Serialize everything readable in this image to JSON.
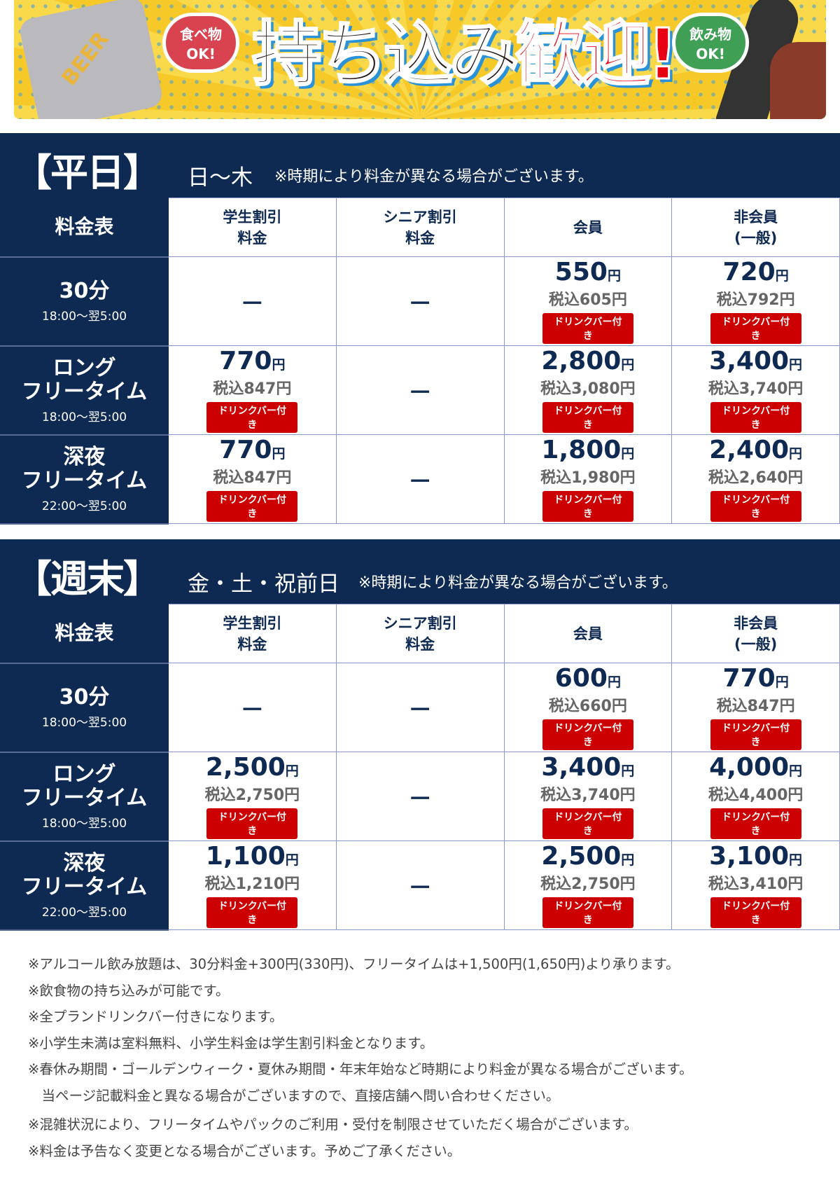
{
  "banner": {
    "title_black": "持ち込み",
    "title_red": "歓迎!",
    "bubble_food": "食べ物\nOK!",
    "bubble_drink": "飲み物\nOK!",
    "can_text": "BEER"
  },
  "colors": {
    "navy": "#0f2a52",
    "badge_red": "#cc0000",
    "grid": "#8a98c8"
  },
  "table_headers": {
    "corner": "料金表",
    "cols": [
      "学生割引\n料金",
      "シニア割引\n料金",
      "会員",
      "非会員\n(一般)"
    ]
  },
  "yen": "円",
  "tax_prefix": "税込",
  "drink_badge": "ドリンクバー付き",
  "dash": "－",
  "sections": [
    {
      "tag": "【平日】",
      "days": "日〜木",
      "note": "※時期により料金が異なる場合がございます。",
      "rows": [
        {
          "label": "30分",
          "time": "18:00〜翌5:00",
          "cells": [
            null,
            null,
            {
              "price": "550",
              "tax": "605"
            },
            {
              "price": "720",
              "tax": "792"
            }
          ]
        },
        {
          "label": "ロング\nフリータイム",
          "time": "18:00〜翌5:00",
          "cells": [
            {
              "price": "770",
              "tax": "847"
            },
            null,
            {
              "price": "2,800",
              "tax": "3,080"
            },
            {
              "price": "3,400",
              "tax": "3,740"
            }
          ]
        },
        {
          "label": "深夜\nフリータイム",
          "time": "22:00〜翌5:00",
          "cells": [
            {
              "price": "770",
              "tax": "847"
            },
            null,
            {
              "price": "1,800",
              "tax": "1,980"
            },
            {
              "price": "2,400",
              "tax": "2,640"
            }
          ]
        }
      ]
    },
    {
      "tag": "【週末】",
      "days": "金・土・祝前日",
      "note": "※時期により料金が異なる場合がございます。",
      "rows": [
        {
          "label": "30分",
          "time": "18:00〜翌5:00",
          "cells": [
            null,
            null,
            {
              "price": "600",
              "tax": "660"
            },
            {
              "price": "770",
              "tax": "847"
            }
          ]
        },
        {
          "label": "ロング\nフリータイム",
          "time": "18:00〜翌5:00",
          "cells": [
            {
              "price": "2,500",
              "tax": "2,750"
            },
            null,
            {
              "price": "3,400",
              "tax": "3,740"
            },
            {
              "price": "4,000",
              "tax": "4,400"
            }
          ]
        },
        {
          "label": "深夜\nフリータイム",
          "time": "22:00〜翌5:00",
          "cells": [
            {
              "price": "1,100",
              "tax": "1,210"
            },
            null,
            {
              "price": "2,500",
              "tax": "2,750"
            },
            {
              "price": "3,100",
              "tax": "3,410"
            }
          ]
        }
      ]
    }
  ],
  "notes": [
    "※アルコール飲み放題は、30分料金+300円(330円)、フリータイムは+1,500円(1,650円)より承ります。",
    "※飲食物の持ち込みが可能です。",
    "※全プランドリンクバー付きになります。",
    "※小学生未満は室料無料、小学生料金は学生割引料金となります。",
    "※春休み期間・ゴールデンウィーク・夏休み期間・年末年始など時期により料金が異なる場合がございます。",
    "　当ページ記載料金と異なる場合がございますので、直接店舗へ問い合わせください。",
    "※混雑状況により、フリータイムやパックのご利用・受付を制限させていただく場合がございます。",
    "※料金は予告なく変更となる場合がございます。予めご了承ください。"
  ]
}
